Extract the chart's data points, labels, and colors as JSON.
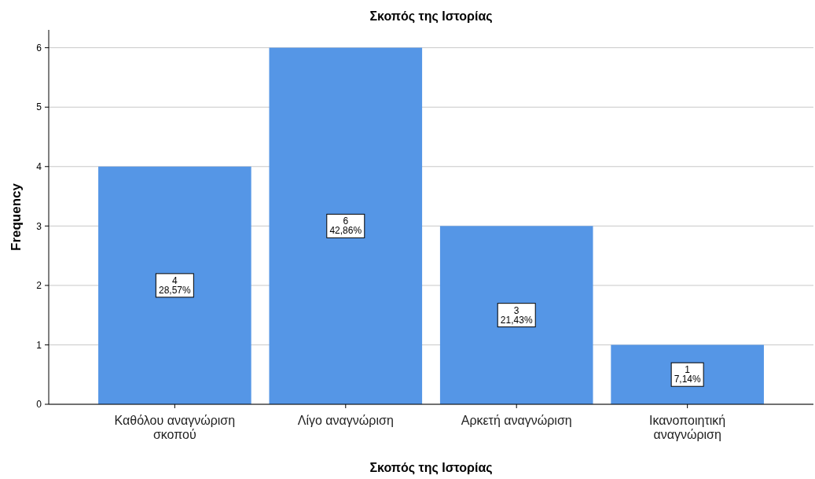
{
  "chart_data": {
    "type": "bar",
    "title": "Σκοπός της Ιστορίας",
    "xlabel": "Σκοπός της Ιστορίας",
    "ylabel": "Frequency",
    "categories": [
      "Καθόλου αναγνώριση σκοπού",
      "Λίγο αναγνώριση",
      "Αρκετή αναγνώριση",
      "Ικανοποιητική αναγνώριση"
    ],
    "values": [
      4,
      6,
      3,
      1
    ],
    "color": "#5596e6",
    "value_labels": [
      "4\n28,57%",
      "6\n42,86%",
      "3\n21,43%",
      "1\n7,14%"
    ],
    "ylim": [
      0,
      6.3
    ],
    "yticks": [
      0,
      1,
      2,
      3,
      4,
      5,
      6
    ],
    "grid": "y"
  }
}
